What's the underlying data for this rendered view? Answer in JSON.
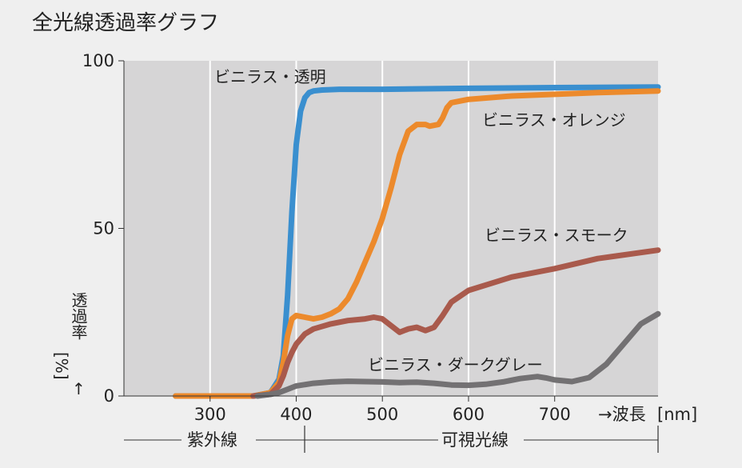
{
  "chart_data": {
    "type": "line",
    "title": "全光線透過率グラフ",
    "xlabel": "→波長",
    "xunit": "[nm]",
    "ylabel": "透過率",
    "yunit": "[%]",
    "yarrow": "↑",
    "xlim": [
      200,
      820
    ],
    "ylim": [
      0,
      100
    ],
    "x_ticks": [
      300,
      400,
      500,
      600,
      700
    ],
    "y_ticks": [
      0,
      50,
      100
    ],
    "grid": "vertical",
    "bands": [
      {
        "label": "紫外線",
        "from": 170,
        "to": 382
      },
      {
        "label": "可視光線",
        "from": 382,
        "to": 820
      }
    ],
    "series": [
      {
        "name": "ビニラス・透明",
        "color": "#3a8fcf",
        "x": [
          260,
          300,
          350,
          370,
          380,
          385,
          390,
          395,
          400,
          405,
          410,
          415,
          420,
          430,
          450,
          500,
          600,
          700,
          820
        ],
        "y": [
          0,
          0,
          0,
          1,
          5,
          12,
          30,
          55,
          75,
          85,
          89,
          90.5,
          91,
          91.3,
          91.5,
          91.5,
          91.8,
          92,
          92.2
        ]
      },
      {
        "name": "ビニラス・オレンジ",
        "color": "#ec8a2c",
        "x": [
          260,
          300,
          350,
          370,
          380,
          385,
          390,
          395,
          400,
          410,
          420,
          430,
          440,
          450,
          460,
          470,
          480,
          490,
          500,
          510,
          520,
          530,
          540,
          550,
          555,
          565,
          570,
          575,
          580,
          600,
          650,
          700,
          750,
          820
        ],
        "y": [
          0,
          0,
          0,
          1,
          4,
          10,
          18,
          23,
          24,
          23.5,
          23,
          23.5,
          24.5,
          26,
          29,
          34,
          40,
          46,
          53,
          62,
          72,
          79,
          81,
          81,
          80.5,
          81,
          83,
          86,
          87.5,
          88.5,
          89.5,
          90,
          90.5,
          91
        ]
      },
      {
        "name": "ビニラス・スモーク",
        "color": "#a95a4c",
        "x": [
          350,
          370,
          380,
          385,
          390,
          395,
          400,
          410,
          420,
          440,
          460,
          480,
          490,
          500,
          510,
          520,
          530,
          540,
          550,
          560,
          570,
          580,
          600,
          650,
          700,
          750,
          820
        ],
        "y": [
          0,
          0.5,
          3,
          6,
          10,
          13,
          15.5,
          18.5,
          20,
          21.5,
          22.5,
          23,
          23.5,
          23,
          21,
          19,
          20,
          20.5,
          19.5,
          20.5,
          24,
          28,
          31.5,
          35.5,
          38,
          41,
          43.5
        ]
      },
      {
        "name": "ビニラス・ダークグレー",
        "color": "#737173",
        "x": [
          355,
          370,
          380,
          390,
          400,
          420,
          440,
          460,
          480,
          500,
          520,
          540,
          560,
          580,
          600,
          620,
          640,
          660,
          680,
          690,
          700,
          720,
          740,
          760,
          780,
          800,
          820
        ],
        "y": [
          0,
          0.5,
          1,
          2,
          3,
          3.8,
          4.2,
          4.4,
          4.3,
          4.2,
          4,
          4.1,
          3.8,
          3.3,
          3.2,
          3.5,
          4.2,
          5.2,
          5.8,
          5.4,
          4.8,
          4.3,
          5.5,
          9.5,
          15.5,
          21.5,
          24.5
        ]
      }
    ]
  }
}
